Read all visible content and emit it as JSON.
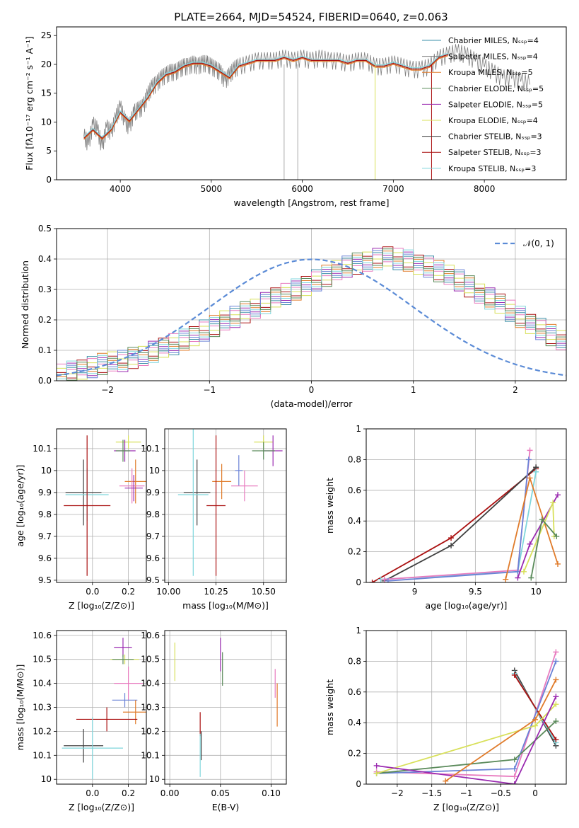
{
  "figure": {
    "title": "PLATE=2664, MJD=54524, FIBERID=0640, z=0.063"
  },
  "colors": {
    "Chabrier MILES": "#3a8fa8",
    "Salpeter MILES": "#7d7d7d",
    "Kroupa MILES": "#e07b2a",
    "Chabrier ELODIE": "#5a8a5a",
    "Salpeter ELODIE": "#9a2ab0",
    "Kroupa ELODIE": "#d8e05a",
    "Chabrier STELIB": "#404040",
    "Salpeter STELIB": "#aa1010",
    "Kroupa STELIB": "#7fd6dc",
    "pink": "#e87bbf",
    "blue": "#6a82d6",
    "gaussian": "#5b8bd6"
  },
  "chart_data": [
    {
      "id": "spectrum",
      "type": "line",
      "title": "PLATE=2664, MJD=54524, FIBERID=0640, z=0.063",
      "xlabel": "wavelength [Angstrom, rest frame]",
      "ylabel": "Flux [fλ10⁻¹⁷ erg cm⁻² s⁻¹ A⁻¹]",
      "xlim": [
        3300,
        8900
      ],
      "ylim": [
        0,
        26.5
      ],
      "xticks": [
        4000,
        5000,
        6000,
        7000,
        8000
      ],
      "yticks": [
        0,
        5,
        10,
        15,
        20,
        25
      ],
      "legend_position": "top-right",
      "grid": false,
      "legend": [
        "Chabrier MILES, N_SSP=4",
        "Salpeter MILES, N_SSP=4",
        "Kroupa MILES, N_SSP=5",
        "Chabrier ELODIE, N_SSP=5",
        "Salpeter ELODIE, N_SSP=5",
        "Kroupa ELODIE, N_SSP=4",
        "Chabrier STELIB, N_SSP=3",
        "Salpeter STELIB, N_SSP=3",
        "Kroupa STELIB, N_SSP=3"
      ],
      "data_x": [
        3600,
        3650,
        3700,
        3750,
        3800,
        3850,
        3900,
        3950,
        4000,
        4050,
        4100,
        4150,
        4200,
        4250,
        4300,
        4350,
        4400,
        4450,
        4500,
        4550,
        4600,
        4650,
        4700,
        4750,
        4800,
        4850,
        4900,
        4950,
        5000,
        5050,
        5100,
        5150,
        5200,
        5250,
        5300,
        5400,
        5500,
        5600,
        5700,
        5800,
        5900,
        6000,
        6100,
        6200,
        6300,
        6400,
        6500,
        6600,
        6700,
        6800,
        6900,
        7000,
        7100,
        7200,
        7300,
        7400,
        7500,
        7600,
        7700,
        7800,
        7900,
        8000,
        8100,
        8200,
        8300,
        8400,
        8500
      ],
      "data_y": [
        7.5,
        6.0,
        9.5,
        8.5,
        5.5,
        9.0,
        8.0,
        10.5,
        12.5,
        10.0,
        9.0,
        11.5,
        12.0,
        12.5,
        14.5,
        16.0,
        16.5,
        17.5,
        18.0,
        18.5,
        18.5,
        19.0,
        19.5,
        19.5,
        20.0,
        19.5,
        20.0,
        20.0,
        19.5,
        19.0,
        18.5,
        17.0,
        18.0,
        19.0,
        19.5,
        20.0,
        20.5,
        20.5,
        20.5,
        21.0,
        20.5,
        21.0,
        20.5,
        21.0,
        20.5,
        20.5,
        20.0,
        20.5,
        20.5,
        19.5,
        19.5,
        20.0,
        19.5,
        19.0,
        19.0,
        19.5,
        21.0,
        21.5,
        22.0,
        21.5,
        20.5,
        19.5,
        18.5,
        17.5,
        17.5,
        17.0,
        16.5
      ],
      "model_x": [
        3600,
        3700,
        3800,
        3900,
        4000,
        4100,
        4200,
        4300,
        4400,
        4500,
        4600,
        4700,
        4800,
        4900,
        5000,
        5100,
        5200,
        5300,
        5400,
        5500,
        5600,
        5700,
        5800,
        5900,
        6000,
        6100,
        6200,
        6300,
        6400,
        6500,
        6600,
        6700,
        6800,
        6900,
        7000,
        7100,
        7200,
        7300,
        7400,
        7500,
        7600
      ],
      "model_y": [
        7.0,
        8.5,
        7.0,
        8.5,
        11.5,
        10.0,
        12.0,
        14.0,
        16.5,
        18.0,
        18.5,
        19.5,
        20.0,
        20.0,
        19.5,
        18.5,
        17.5,
        19.5,
        20.0,
        20.5,
        20.5,
        20.5,
        21.0,
        20.5,
        21.0,
        20.5,
        20.5,
        20.5,
        20.5,
        20.0,
        20.5,
        20.5,
        19.5,
        19.5,
        20.0,
        19.5,
        19.0,
        19.0,
        19.5,
        21.0,
        21.5
      ]
    },
    {
      "id": "residuals",
      "type": "histogram",
      "xlabel": "(data-model)/error",
      "ylabel": "Normed distribution",
      "xlim": [
        -2.5,
        2.5
      ],
      "ylim": [
        0,
        0.5
      ],
      "xticks": [
        -2,
        -1,
        0,
        1,
        2
      ],
      "yticks": [
        0.0,
        0.1,
        0.2,
        0.3,
        0.4,
        0.5
      ],
      "grid": true,
      "legend": [
        "𝒩(0, 1)"
      ],
      "legend_position": "top-right",
      "bin_width": 0.1,
      "bin_start": -2.5,
      "bin_heights": [
        0.02,
        0.03,
        0.04,
        0.045,
        0.055,
        0.06,
        0.065,
        0.075,
        0.085,
        0.095,
        0.105,
        0.12,
        0.135,
        0.15,
        0.165,
        0.18,
        0.195,
        0.21,
        0.225,
        0.24,
        0.255,
        0.27,
        0.285,
        0.3,
        0.315,
        0.33,
        0.345,
        0.36,
        0.375,
        0.385,
        0.395,
        0.4,
        0.405,
        0.4,
        0.395,
        0.385,
        0.375,
        0.36,
        0.345,
        0.33,
        0.31,
        0.29,
        0.27,
        0.25,
        0.23,
        0.21,
        0.19,
        0.17,
        0.15,
        0.13
      ]
    },
    {
      "id": "age-vs-Z",
      "type": "scatter",
      "xlabel": "Z [log₁₀(Z/Z⊙)]",
      "ylabel": "age  [log₁₀(age/yr)]",
      "xlim": [
        -0.2,
        0.3
      ],
      "ylim": [
        9.49,
        10.19
      ],
      "xticks": [
        0.0,
        0.2
      ],
      "xtick_labels": [
        "0.0",
        "0.2"
      ],
      "yticks": [
        9.5,
        9.6,
        9.7,
        9.8,
        9.9,
        10.0,
        10.1
      ],
      "grid": true,
      "points": [
        {
          "series": "Kroupa ELODIE",
          "x": 0.2,
          "y": 10.13,
          "ex": 0.07,
          "ey": 0.03
        },
        {
          "series": "Salpeter ELODIE",
          "x": 0.18,
          "y": 10.09,
          "ex": 0.06,
          "ey": 0.05
        },
        {
          "series": "Chabrier ELODIE",
          "x": 0.17,
          "y": 10.09,
          "ex": 0.04,
          "ey": 0.05
        },
        {
          "series": "Kroupa MILES",
          "x": 0.24,
          "y": 9.95,
          "ex": 0.06,
          "ey": 0.1
        },
        {
          "series": "pink",
          "x": 0.22,
          "y": 9.93,
          "ex": 0.07,
          "ey": 0.08
        },
        {
          "series": "Salpeter ELODIE",
          "x": 0.23,
          "y": 9.92,
          "ex": 0.05,
          "ey": 0.06
        },
        {
          "series": "Chabrier STELIB",
          "x": -0.05,
          "y": 9.9,
          "ex": 0.1,
          "ey": 0.15
        },
        {
          "series": "Kroupa STELIB",
          "x": -0.03,
          "y": 9.89,
          "ex": 0.12,
          "ey": 0.12
        },
        {
          "series": "Salpeter STELIB",
          "x": -0.03,
          "y": 9.84,
          "ex": 0.13,
          "ey": 0.32
        }
      ]
    },
    {
      "id": "age-vs-mass",
      "type": "scatter",
      "xlabel": "mass [log₁₀(M/M⊙)]",
      "ylabel": "",
      "xlim": [
        9.98,
        10.62
      ],
      "ylim": [
        9.49,
        10.19
      ],
      "xticks": [
        10.0,
        10.25,
        10.5
      ],
      "xtick_labels": [
        "10.00",
        "10.25",
        "10.50"
      ],
      "yticks": [
        9.5,
        9.6,
        9.7,
        9.8,
        9.9,
        10.0,
        10.1
      ],
      "grid": true,
      "points": [
        {
          "series": "Kroupa ELODIE",
          "x": 10.5,
          "y": 10.13,
          "ex": 0.05,
          "ey": 0.03
        },
        {
          "series": "Salpeter ELODIE",
          "x": 10.55,
          "y": 10.09,
          "ex": 0.05,
          "ey": 0.07
        },
        {
          "series": "Chabrier ELODIE",
          "x": 10.5,
          "y": 10.09,
          "ex": 0.06,
          "ey": 0.04
        },
        {
          "series": "blue",
          "x": 10.37,
          "y": 10.0,
          "ex": 0.02,
          "ey": 0.07
        },
        {
          "series": "Kroupa MILES",
          "x": 10.28,
          "y": 9.95,
          "ex": 0.05,
          "ey": 0.08
        },
        {
          "series": "pink",
          "x": 10.4,
          "y": 9.93,
          "ex": 0.07,
          "ey": 0.07
        },
        {
          "series": "Chabrier STELIB",
          "x": 10.15,
          "y": 9.9,
          "ex": 0.07,
          "ey": 0.15
        },
        {
          "series": "Kroupa STELIB",
          "x": 10.13,
          "y": 9.89,
          "ex": 0.08,
          "ey": 0.37
        },
        {
          "series": "Salpeter STELIB",
          "x": 10.25,
          "y": 9.84,
          "ex": 0.05,
          "ey": 0.32
        }
      ]
    },
    {
      "id": "weight-vs-age",
      "type": "line",
      "xlabel": "age  [log₁₀(age/yr)]",
      "ylabel": "mass weight",
      "xlim": [
        8.6,
        10.25
      ],
      "ylim": [
        0,
        1.0
      ],
      "xticks": [
        9.0,
        9.5,
        10.0
      ],
      "yticks": [
        0.0,
        0.2,
        0.4,
        0.6,
        0.8,
        1.0
      ],
      "grid": true,
      "lines": [
        {
          "series": "Salpeter STELIB",
          "x": [
            8.65,
            9.3,
            10.0
          ],
          "y": [
            0.0,
            0.29,
            0.74
          ]
        },
        {
          "series": "Chabrier STELIB",
          "x": [
            8.75,
            9.3,
            10.0
          ],
          "y": [
            0.01,
            0.24,
            0.75
          ]
        },
        {
          "series": "Kroupa STELIB",
          "x": [
            8.72,
            9.85,
            10.0
          ],
          "y": [
            0.02,
            0.07,
            0.72
          ]
        },
        {
          "series": "pink",
          "x": [
            8.75,
            9.85,
            9.95
          ],
          "y": [
            0.02,
            0.08,
            0.86
          ]
        },
        {
          "series": "blue",
          "x": [
            8.78,
            9.85,
            9.94
          ],
          "y": [
            0.01,
            0.07,
            0.8
          ]
        },
        {
          "series": "Kroupa MILES",
          "x": [
            9.75,
            9.95,
            10.18
          ],
          "y": [
            0.02,
            0.68,
            0.12
          ]
        },
        {
          "series": "Salpeter ELODIE",
          "x": [
            9.85,
            9.95,
            10.18
          ],
          "y": [
            0.03,
            0.25,
            0.57
          ]
        },
        {
          "series": "Kroupa ELODIE",
          "x": [
            9.9,
            10.14,
            10.15
          ],
          "y": [
            0.07,
            0.52,
            0.3
          ]
        },
        {
          "series": "Chabrier ELODIE",
          "x": [
            9.96,
            10.05,
            10.17
          ],
          "y": [
            0.03,
            0.41,
            0.3
          ]
        }
      ]
    },
    {
      "id": "mass-vs-Z",
      "type": "scatter",
      "xlabel": "Z [log₁₀(Z/Z⊙)]",
      "ylabel": "mass [log₁₀(M/M⊙)]",
      "xlim": [
        -0.2,
        0.3
      ],
      "ylim": [
        9.98,
        10.62
      ],
      "xticks": [
        0.0,
        0.2
      ],
      "xtick_labels": [
        "0.0",
        "0.2"
      ],
      "yticks": [
        10.0,
        10.1,
        10.2,
        10.3,
        10.4,
        10.5,
        10.6
      ],
      "grid": true,
      "points": [
        {
          "series": "Salpeter ELODIE",
          "x": 0.17,
          "y": 10.55,
          "ex": 0.05,
          "ey": 0.04
        },
        {
          "series": "Kroupa ELODIE",
          "x": 0.18,
          "y": 10.5,
          "ex": 0.08,
          "ey": 0.02
        },
        {
          "series": "Chabrier ELODIE",
          "x": 0.17,
          "y": 10.5,
          "ex": 0.06,
          "ey": 0.02
        },
        {
          "series": "pink",
          "x": 0.2,
          "y": 10.4,
          "ex": 0.08,
          "ey": 0.07
        },
        {
          "series": "blue",
          "x": 0.18,
          "y": 10.33,
          "ex": 0.07,
          "ey": 0.03
        },
        {
          "series": "Kroupa MILES",
          "x": 0.24,
          "y": 10.28,
          "ex": 0.07,
          "ey": 0.05
        },
        {
          "series": "Salpeter STELIB",
          "x": 0.08,
          "y": 10.25,
          "ex": 0.17,
          "ey": 0.05
        },
        {
          "series": "Chabrier STELIB",
          "x": -0.05,
          "y": 10.14,
          "ex": 0.11,
          "ey": 0.07
        },
        {
          "series": "Kroupa STELIB",
          "x": 0.0,
          "y": 10.13,
          "ex": 0.17,
          "ey": 0.13
        }
      ]
    },
    {
      "id": "mass-vs-EBV",
      "type": "scatter",
      "xlabel": "E(B-V)",
      "ylabel": "",
      "xlim": [
        -0.005,
        0.115
      ],
      "ylim": [
        9.98,
        10.62
      ],
      "xticks": [
        0.0,
        0.05,
        0.1
      ],
      "xtick_labels": [
        "0.00",
        "0.05",
        "0.10"
      ],
      "yticks": [
        10.0,
        10.1,
        10.2,
        10.3,
        10.4,
        10.5,
        10.6
      ],
      "grid": true,
      "points": [
        {
          "series": "Kroupa ELODIE",
          "x": 0.005,
          "y": 10.49,
          "ex": 0.0,
          "ey": 0.08
        },
        {
          "series": "Salpeter ELODIE",
          "x": 0.05,
          "y": 10.52,
          "ex": 0.0,
          "ey": 0.07
        },
        {
          "series": "Chabrier ELODIE",
          "x": 0.052,
          "y": 10.46,
          "ex": 0.0,
          "ey": 0.07
        },
        {
          "series": "pink",
          "x": 0.104,
          "y": 10.4,
          "ex": 0.0,
          "ey": 0.06
        },
        {
          "series": "Kroupa MILES",
          "x": 0.106,
          "y": 10.31,
          "ex": 0.0,
          "ey": 0.09
        },
        {
          "series": "Salpeter STELIB",
          "x": 0.03,
          "y": 10.23,
          "ex": 0.0,
          "ey": 0.05
        },
        {
          "series": "Chabrier STELIB",
          "x": 0.031,
          "y": 10.14,
          "ex": 0.0,
          "ey": 0.06
        },
        {
          "series": "Kroupa STELIB",
          "x": 0.03,
          "y": 10.1,
          "ex": 0.0,
          "ey": 0.09
        }
      ]
    },
    {
      "id": "weight-vs-Z",
      "type": "line",
      "xlabel": "Z [log₁₀(Z/Z⊙)]",
      "ylabel": "mass weight",
      "xlim": [
        -2.45,
        0.45
      ],
      "ylim": [
        0,
        1.0
      ],
      "xticks": [
        -2.0,
        -1.5,
        -1.0,
        -0.5,
        0.0
      ],
      "yticks": [
        0.0,
        0.2,
        0.4,
        0.6,
        0.8,
        1.0
      ],
      "grid": true,
      "lines": [
        {
          "series": "Chabrier STELIB",
          "x": [
            -0.3,
            0.3
          ],
          "y": [
            0.74,
            0.25
          ]
        },
        {
          "series": "Kroupa STELIB",
          "x": [
            -0.3,
            0.3
          ],
          "y": [
            0.72,
            0.27
          ]
        },
        {
          "series": "Salpeter STELIB",
          "x": [
            -0.3,
            0.3
          ],
          "y": [
            0.71,
            0.29
          ]
        },
        {
          "series": "pink",
          "x": [
            -2.3,
            -0.3,
            0.3
          ],
          "y": [
            0.08,
            0.05,
            0.86
          ]
        },
        {
          "series": "blue",
          "x": [
            -2.3,
            -0.3,
            0.3
          ],
          "y": [
            0.07,
            0.1,
            0.8
          ]
        },
        {
          "series": "Chabrier ELODIE",
          "x": [
            -2.3,
            -0.3,
            0.3
          ],
          "y": [
            0.07,
            0.16,
            0.41
          ]
        },
        {
          "series": "Kroupa ELODIE",
          "x": [
            -2.3,
            0.0,
            0.3
          ],
          "y": [
            0.07,
            0.38,
            0.52
          ]
        },
        {
          "series": "Salpeter ELODIE",
          "x": [
            -2.3,
            -0.3,
            0.3
          ],
          "y": [
            0.12,
            0.0,
            0.57
          ]
        },
        {
          "series": "Kroupa MILES",
          "x": [
            -1.3,
            0.0,
            0.3
          ],
          "y": [
            0.02,
            0.42,
            0.68
          ]
        }
      ]
    }
  ]
}
